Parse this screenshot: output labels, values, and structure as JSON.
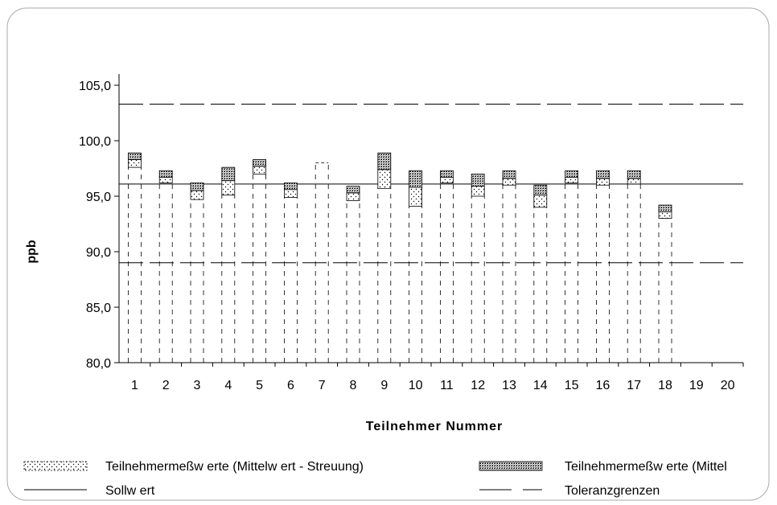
{
  "chart_data": {
    "type": "bar",
    "xlabel": "Teilnehmer Nummer",
    "ylabel": "ppb",
    "ylim": [
      80,
      105
    ],
    "yticks": [
      "80,0",
      "85,0",
      "90,0",
      "95,0",
      "100,0",
      "105,0"
    ],
    "categories": [
      "1",
      "2",
      "3",
      "4",
      "5",
      "6",
      "7",
      "8",
      "9",
      "10",
      "11",
      "12",
      "13",
      "14",
      "15",
      "16",
      "17",
      "18",
      "19",
      "20"
    ],
    "series": [
      {
        "name": "Teilnehmermeßw erte (Mittelw ert - Streuung)",
        "lower": [
          97.6,
          96.2,
          94.7,
          95.1,
          97.0,
          94.9,
          null,
          94.6,
          95.7,
          94.1,
          96.2,
          95.0,
          96.0,
          94.0,
          96.2,
          96.0,
          96.1,
          93.0,
          null,
          null
        ],
        "upper": [
          98.3,
          96.7,
          95.5,
          96.4,
          97.7,
          95.6,
          null,
          95.3,
          97.4,
          95.8,
          96.7,
          95.9,
          96.6,
          95.1,
          96.7,
          96.6,
          96.6,
          93.6,
          null,
          null
        ]
      },
      {
        "name": "Teilnehmermeßw erte (Mittel",
        "lower": [
          98.3,
          96.7,
          95.5,
          96.4,
          97.7,
          95.6,
          null,
          95.3,
          97.4,
          95.8,
          96.7,
          95.9,
          96.6,
          95.1,
          96.7,
          96.6,
          96.6,
          93.6,
          null,
          null
        ],
        "upper": [
          98.9,
          97.3,
          96.2,
          97.6,
          98.3,
          96.2,
          null,
          95.9,
          98.9,
          97.3,
          97.3,
          97.0,
          97.3,
          96.0,
          97.3,
          97.3,
          97.3,
          94.2,
          null,
          null
        ]
      }
    ],
    "single_value_markers": [
      null,
      null,
      null,
      null,
      null,
      null,
      98.0,
      null,
      null,
      null,
      null,
      null,
      null,
      null,
      null,
      null,
      null,
      null,
      null,
      null
    ],
    "reference_lines": [
      {
        "name": "Sollw ert",
        "value": 96.1,
        "style": "solid"
      },
      {
        "name": "Toleranzgrenzen",
        "values": [
          103.3,
          89.0
        ],
        "style": "dashed"
      }
    ],
    "legend": [
      {
        "label": "Teilnehmermeßw erte (Mittelw ert - Streuung)",
        "swatch": "dotted-box"
      },
      {
        "label": "Teilnehmermeßw erte (Mittel",
        "swatch": "crosshatch-box"
      },
      {
        "label": "Sollw ert",
        "swatch": "solid-line"
      },
      {
        "label": "Toleranzgrenzen",
        "swatch": "dashed-line"
      }
    ],
    "legend_placement": "bottom",
    "grid": false,
    "colors": {
      "text": "#000000",
      "dotted_fill": "#ffffff",
      "crosshatch_fill": "#888888",
      "border": "#aaaaaa"
    }
  }
}
